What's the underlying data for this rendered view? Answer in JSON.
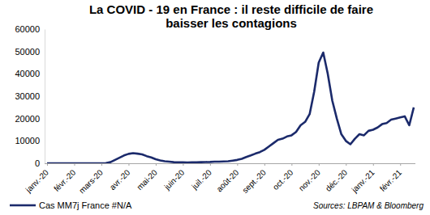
{
  "chart_data": {
    "type": "line",
    "title": "La COVID - 19 en France : il reste difficile de faire baisser les contagions",
    "annotations": [
      "Sources: LBPAM & Bloomberg"
    ],
    "categories": [
      "janv.-20",
      null,
      null,
      null,
      null,
      null,
      "févr.-20",
      null,
      null,
      null,
      null,
      null,
      "mars-20",
      null,
      null,
      null,
      null,
      null,
      "avr.-20",
      null,
      null,
      null,
      null,
      null,
      "mai-20",
      null,
      null,
      null,
      null,
      null,
      "juin-20",
      null,
      null,
      null,
      null,
      null,
      "juil.-20",
      null,
      null,
      null,
      null,
      null,
      "août-20",
      null,
      null,
      null,
      null,
      null,
      "sept.-20",
      null,
      null,
      null,
      null,
      null,
      "oct.-20",
      null,
      null,
      null,
      null,
      null,
      "nov.-20",
      null,
      null,
      null,
      null,
      null,
      "déc.-20",
      null,
      null,
      null,
      null,
      null,
      "janv.-21",
      null,
      null,
      null,
      null,
      null,
      "févr.-21",
      null,
      null,
      null
    ],
    "series": [
      {
        "name": "Cas MM7j France #N/A",
        "color": "#1b2a6b",
        "values": [
          0,
          0,
          0,
          0,
          0,
          0,
          0,
          0,
          0,
          0,
          0,
          0,
          10,
          100,
          500,
          1500,
          2500,
          3500,
          4200,
          4500,
          4300,
          4000,
          3200,
          2600,
          1800,
          1300,
          900,
          700,
          500,
          450,
          400,
          350,
          400,
          450,
          500,
          550,
          600,
          700,
          700,
          800,
          900,
          1200,
          1500,
          2000,
          2800,
          3500,
          4300,
          5000,
          6000,
          7500,
          9000,
          10500,
          11000,
          12000,
          12500,
          14000,
          17000,
          18500,
          22000,
          32000,
          45000,
          49500,
          40000,
          28000,
          20000,
          13000,
          10000,
          8500,
          11000,
          13000,
          12500,
          14500,
          15000,
          16000,
          17500,
          18000,
          19500,
          20000,
          20500,
          21000,
          17000,
          25000
        ]
      }
    ],
    "ylim": [
      0,
      60000
    ],
    "yticks": [
      0,
      10000,
      20000,
      30000,
      40000,
      50000,
      60000
    ],
    "grid": false,
    "legend": "bottom"
  }
}
